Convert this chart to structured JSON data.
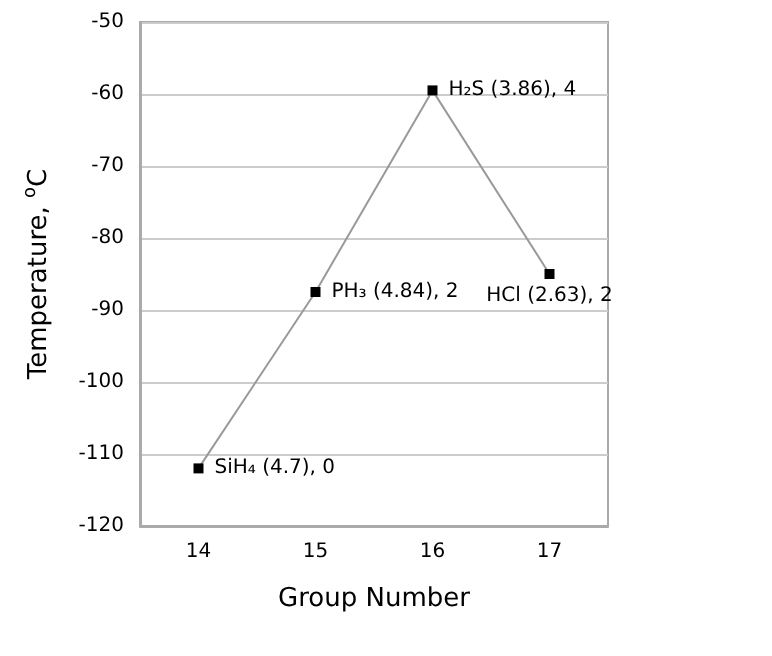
{
  "chart_data": {
    "type": "line",
    "xlabel": "Group Number",
    "ylabel": "Temperature, $^{o}$C",
    "x": [
      14,
      15,
      16,
      17
    ],
    "series": [
      {
        "color": "#000000",
        "values": [
          -112,
          -87.5,
          -59.5,
          -85
        ]
      }
    ],
    "xlim": [
      13.5,
      17.5
    ],
    "xticks": [
      14,
      15,
      16,
      17
    ],
    "ylim": [
      -120,
      -50
    ],
    "yticks": [
      -120,
      -110,
      -100,
      -90,
      -80,
      -70,
      -60,
      -50
    ],
    "grid": "y",
    "marker": "square",
    "line_style": "solid",
    "annotations": [
      {
        "text": "SiH₄ (4.7), 0",
        "x": 14,
        "y": -112
      },
      {
        "text": "PH₃ (4.84), 2",
        "x": 15,
        "y": -87.5
      },
      {
        "text": "H₂S (3.86), 4",
        "x": 16,
        "y": -59.5
      },
      {
        "text": "HCl (2.63), 2",
        "x": 17,
        "y": -85
      }
    ]
  }
}
